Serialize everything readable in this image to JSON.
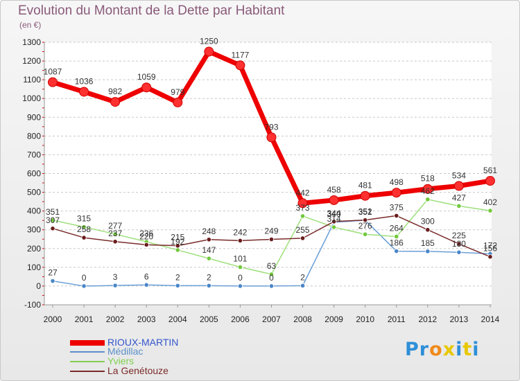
{
  "chart_data": {
    "type": "line",
    "title": "Evolution du Montant de la Dette par Habitant",
    "ylabel": "(en €)",
    "xlabel": "",
    "categories": [
      "2000",
      "2001",
      "2002",
      "2003",
      "2004",
      "2005",
      "2006",
      "2007",
      "2008",
      "2009",
      "2010",
      "2011",
      "2012",
      "2013",
      "2014"
    ],
    "ylim": [
      -100,
      1300
    ],
    "yticks": [
      -100,
      0,
      100,
      200,
      300,
      400,
      500,
      600,
      700,
      800,
      900,
      1000,
      1100,
      1200,
      1300
    ],
    "grid": "horizontal-dashed",
    "legend": "bottom-left",
    "series": [
      {
        "name": "RIOUX-MARTIN",
        "color": "#ee0000",
        "values": [
          1087,
          1036,
          982,
          1059,
          979,
          1250,
          1177,
          793,
          442,
          458,
          481,
          498,
          518,
          534,
          561
        ]
      },
      {
        "name": "Médillac",
        "color": "#5a8fc8",
        "values": [
          27,
          0,
          3,
          6,
          2,
          2,
          0,
          0,
          2,
          340,
          351,
          186,
          185,
          180,
          172
        ]
      },
      {
        "name": "Yviers",
        "color": "#80d050",
        "values": [
          351,
          315,
          277,
          236,
          192,
          147,
          101,
          63,
          373,
          314,
          276,
          264,
          462,
          427,
          402
        ]
      },
      {
        "name": "La Genétouze",
        "color": "#7a2a2a",
        "values": [
          307,
          258,
          237,
          220,
          215,
          248,
          242,
          249,
          255,
          344,
          352,
          375,
          300,
          225,
          156
        ]
      }
    ]
  },
  "logo": {
    "letters": [
      "P",
      "r",
      "o",
      "x",
      "i",
      "t",
      "i"
    ],
    "colors": [
      "#2f8fd8",
      "#2f8fd8",
      "#f08a1c",
      "#e8c800",
      "#2f8fd8",
      "#e8c800",
      "#2f8fd8"
    ]
  }
}
